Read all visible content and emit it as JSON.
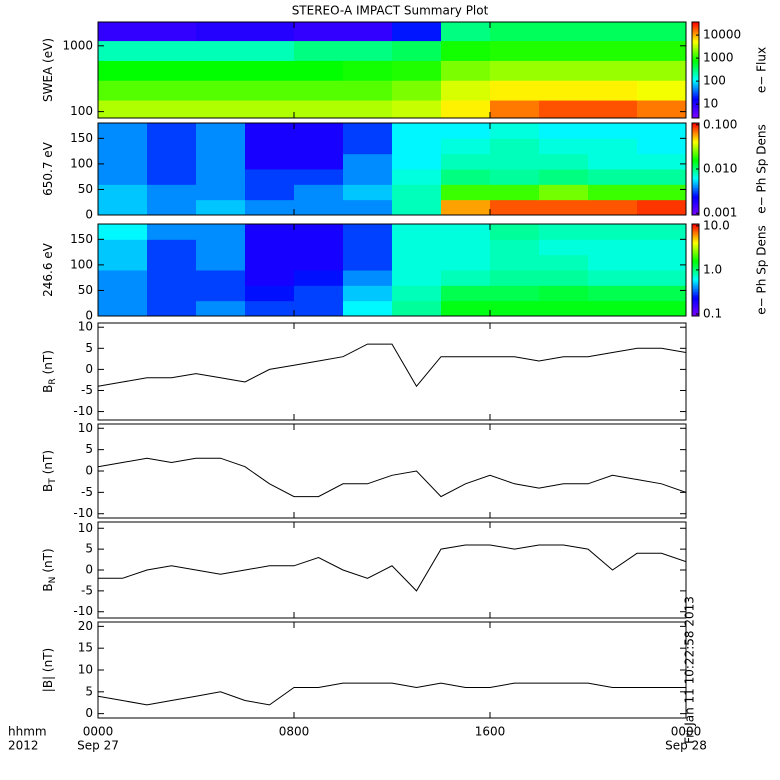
{
  "chart_data": [
    {
      "type": "heatmap",
      "title": "STEREO-A IMPACT Summary Plot",
      "ylabel": "SWEA (eV)",
      "log_y": true,
      "xlim": [
        0,
        24
      ],
      "ylim": [
        80,
        2300
      ],
      "yticks": [
        100,
        1000
      ],
      "x_edges": [
        0,
        2,
        4,
        6,
        8,
        10,
        12,
        14,
        16,
        18,
        20,
        22,
        24
      ],
      "y_edges": [
        80,
        150,
        300,
        600,
        1200,
        2300
      ],
      "z": [
        [
          3000,
          3000,
          3000,
          3000,
          3000,
          3000,
          3500,
          6000,
          15000,
          20000,
          20000,
          15000
        ],
        [
          1500,
          1500,
          1500,
          1500,
          1500,
          1500,
          2000,
          4000,
          6000,
          6000,
          6000,
          5000
        ],
        [
          800,
          800,
          800,
          800,
          800,
          900,
          1000,
          2000,
          2500,
          2500,
          2500,
          2500
        ],
        [
          200,
          200,
          200,
          200,
          300,
          300,
          400,
          900,
          1000,
          1000,
          1000,
          1000
        ],
        [
          8,
          8,
          10,
          10,
          8,
          8,
          20,
          300,
          400,
          400,
          400,
          400
        ]
      ],
      "colormap": [
        "#8000ff",
        "#0000ff",
        "#00ffff",
        "#00ff00",
        "#ffff00",
        "#ff0000"
      ],
      "colorbar": {
        "label": "e− Flux",
        "log": true,
        "lim": [
          2.5,
          37000
        ],
        "ticks": [
          10,
          100,
          1000,
          10000
        ]
      }
    },
    {
      "type": "heatmap",
      "ylabel": "650.7 eV",
      "log_y": false,
      "xlim": [
        0,
        24
      ],
      "ylim": [
        0,
        180
      ],
      "yticks": [
        0,
        50,
        100,
        150
      ],
      "x_edges": [
        0,
        2,
        4,
        6,
        8,
        10,
        12,
        14,
        16,
        18,
        20,
        22,
        24
      ],
      "y_edges": [
        0,
        30,
        60,
        90,
        120,
        150,
        180
      ],
      "z": [
        [
          0.005,
          0.004,
          0.005,
          0.004,
          0.004,
          0.004,
          0.008,
          0.06,
          0.08,
          0.08,
          0.08,
          0.09
        ],
        [
          0.005,
          0.004,
          0.004,
          0.003,
          0.004,
          0.005,
          0.008,
          0.02,
          0.02,
          0.025,
          0.02,
          0.02
        ],
        [
          0.004,
          0.003,
          0.004,
          0.003,
          0.003,
          0.004,
          0.007,
          0.01,
          0.009,
          0.01,
          0.009,
          0.009
        ],
        [
          0.004,
          0.003,
          0.004,
          0.002,
          0.002,
          0.004,
          0.006,
          0.008,
          0.008,
          0.008,
          0.007,
          0.007
        ],
        [
          0.004,
          0.003,
          0.004,
          0.002,
          0.002,
          0.003,
          0.006,
          0.007,
          0.008,
          0.007,
          0.007,
          0.006
        ],
        [
          0.004,
          0.003,
          0.004,
          0.002,
          0.002,
          0.003,
          0.006,
          0.006,
          0.007,
          0.006,
          0.006,
          0.006
        ]
      ],
      "colormap": [
        "#8000ff",
        "#0000ff",
        "#00ffff",
        "#00ff00",
        "#ffff00",
        "#ff0000"
      ],
      "colorbar": {
        "label": "e− Ph Sp Dens",
        "log": true,
        "lim": [
          0.00091,
          0.11
        ],
        "ticks": [
          {
            "value": 0.001,
            "label": "0.001"
          },
          {
            "value": 0.01,
            "label": "0.010"
          },
          {
            "value": 0.1,
            "label": "0.100"
          }
        ]
      }
    },
    {
      "type": "heatmap",
      "ylabel": "246.6 eV",
      "log_y": false,
      "xlim": [
        0,
        24
      ],
      "ylim": [
        0,
        180
      ],
      "yticks": [
        0,
        50,
        100,
        150
      ],
      "x_edges": [
        0,
        2,
        4,
        6,
        8,
        10,
        12,
        14,
        16,
        18,
        20,
        22,
        24
      ],
      "y_edges": [
        0,
        30,
        60,
        90,
        120,
        150,
        180
      ],
      "z": [
        [
          0.4,
          0.3,
          0.4,
          0.3,
          0.3,
          0.6,
          0.9,
          1.5,
          1.5,
          1.5,
          1.5,
          1.5
        ],
        [
          0.4,
          0.3,
          0.3,
          0.25,
          0.3,
          0.5,
          0.8,
          1.2,
          1.2,
          1.3,
          1.2,
          1.2
        ],
        [
          0.4,
          0.3,
          0.3,
          0.2,
          0.25,
          0.4,
          0.7,
          0.8,
          0.9,
          0.9,
          0.8,
          0.8
        ],
        [
          0.5,
          0.3,
          0.4,
          0.2,
          0.2,
          0.3,
          0.7,
          0.7,
          0.8,
          0.8,
          0.7,
          0.7
        ],
        [
          0.5,
          0.3,
          0.4,
          0.2,
          0.2,
          0.3,
          0.7,
          0.7,
          0.8,
          0.7,
          0.7,
          0.7
        ],
        [
          0.6,
          0.4,
          0.4,
          0.2,
          0.2,
          0.3,
          0.7,
          0.7,
          0.9,
          0.8,
          0.8,
          0.8
        ]
      ],
      "colormap": [
        "#8000ff",
        "#0000ff",
        "#00ffff",
        "#00ff00",
        "#ffff00",
        "#ff0000"
      ],
      "colorbar": {
        "label": "e− Ph Sp Dens",
        "log": true,
        "lim": [
          0.09,
          11
        ],
        "ticks": [
          0.1,
          {
            "value": 1,
            "label": "1.0"
          },
          {
            "value": 10,
            "label": "10.0"
          }
        ]
      }
    },
    {
      "type": "line",
      "ylabel": "B",
      "ylabel_sub": "R",
      "ylabel_unit": "(nT)",
      "color": "#000000",
      "xlim": [
        0,
        24
      ],
      "ylim": [
        -12,
        11
      ],
      "yticks": [
        -10,
        -5,
        0,
        5,
        10
      ],
      "x": [
        0,
        1,
        2,
        3,
        4,
        5,
        6,
        7,
        8,
        9,
        10,
        11,
        12,
        13,
        14,
        15,
        16,
        17,
        18,
        19,
        20,
        21,
        22,
        23,
        24
      ],
      "values": [
        -4,
        -3,
        -2,
        -2,
        -1,
        -2,
        -3,
        0,
        1,
        2,
        3,
        6,
        6,
        -4,
        3,
        3,
        3,
        3,
        2,
        3,
        3,
        4,
        5,
        5,
        4
      ]
    },
    {
      "type": "line",
      "ylabel": "B",
      "ylabel_sub": "T",
      "ylabel_unit": "(nT)",
      "color": "#000000",
      "xlim": [
        0,
        24
      ],
      "ylim": [
        -11,
        11
      ],
      "yticks": [
        -10,
        -5,
        0,
        5,
        10
      ],
      "x": [
        0,
        1,
        2,
        3,
        4,
        5,
        6,
        7,
        8,
        9,
        10,
        11,
        12,
        13,
        14,
        15,
        16,
        17,
        18,
        19,
        20,
        21,
        22,
        23,
        24
      ],
      "values": [
        1,
        2,
        3,
        2,
        3,
        3,
        1,
        -3,
        -6,
        -6,
        -3,
        -3,
        -1,
        0,
        -6,
        -3,
        -1,
        -3,
        -4,
        -3,
        -3,
        -1,
        -2,
        -3,
        -5
      ]
    },
    {
      "type": "line",
      "ylabel": "B",
      "ylabel_sub": "N",
      "ylabel_unit": "(nT)",
      "color": "#000000",
      "xlim": [
        0,
        24
      ],
      "ylim": [
        -11.5,
        11.5
      ],
      "yticks": [
        -10,
        -5,
        0,
        5,
        10
      ],
      "x": [
        0,
        1,
        2,
        3,
        4,
        5,
        6,
        7,
        8,
        9,
        10,
        11,
        12,
        13,
        14,
        15,
        16,
        17,
        18,
        19,
        20,
        21,
        22,
        23,
        24
      ],
      "values": [
        -2,
        -2,
        0,
        1,
        0,
        -1,
        0,
        1,
        1,
        3,
        0,
        -2,
        1,
        -5,
        5,
        6,
        6,
        5,
        6,
        6,
        5,
        0,
        4,
        4,
        2
      ]
    },
    {
      "type": "line",
      "ylabel": "|B| (nT)",
      "color": "#000000",
      "xlim": [
        0,
        24
      ],
      "ylim": [
        -1,
        21
      ],
      "yticks": [
        0,
        5,
        10,
        15,
        20
      ],
      "x": [
        0,
        1,
        2,
        3,
        4,
        5,
        6,
        7,
        8,
        9,
        10,
        11,
        12,
        13,
        14,
        15,
        16,
        17,
        18,
        19,
        20,
        21,
        22,
        23,
        24
      ],
      "values": [
        4,
        3,
        2,
        3,
        4,
        5,
        3,
        2,
        6,
        6,
        7,
        7,
        7,
        6,
        7,
        6,
        6,
        7,
        7,
        7,
        7,
        6,
        6,
        6,
        6
      ],
      "xticks": [
        {
          "value": 0,
          "label": "0000"
        },
        {
          "value": 8,
          "label": "0800"
        },
        {
          "value": 16,
          "label": "1600"
        },
        {
          "value": 24,
          "label": "0000"
        }
      ],
      "date_ticks": [
        {
          "value": 0,
          "label": "Sep 27"
        },
        {
          "value": 24,
          "label": "Sep 28"
        }
      ],
      "xlabel_lines": [
        "hhmm",
        "2012"
      ],
      "stamp": "Fri Jan 11 10:22:58 2013"
    }
  ]
}
